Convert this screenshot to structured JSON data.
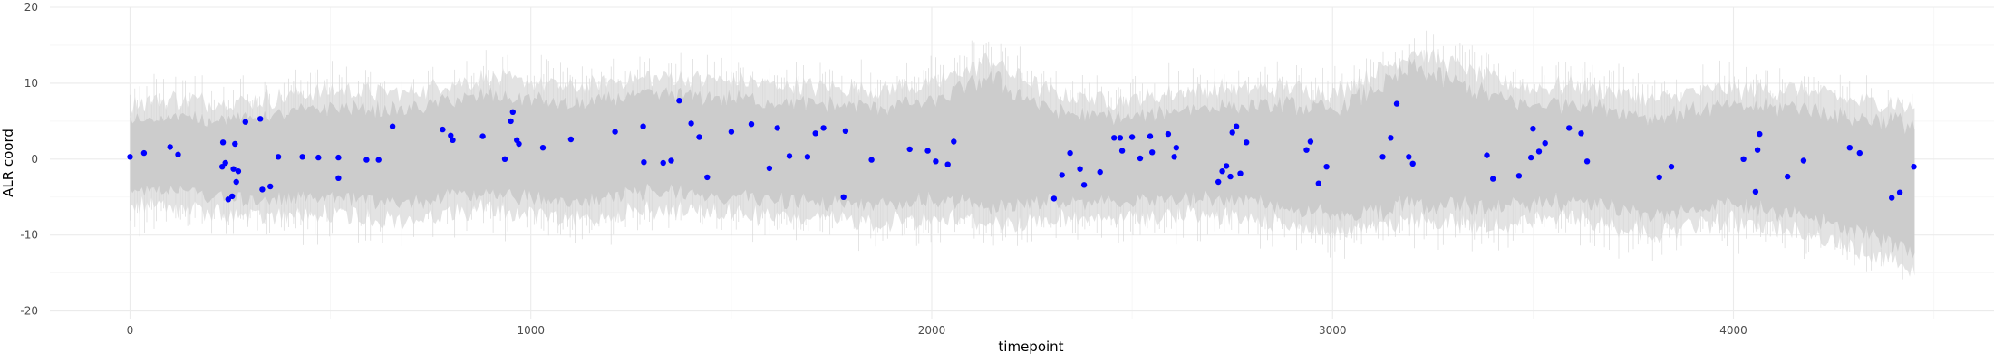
{
  "chart_data": {
    "type": "scatter",
    "title": "",
    "xlabel": "timepoint",
    "ylabel": "ALR coord",
    "xlim": [
      -200,
      4650
    ],
    "ylim": [
      -21,
      20
    ],
    "x_ticks": [
      0,
      1000,
      2000,
      3000,
      4000
    ],
    "y_ticks": [
      -20,
      -10,
      0,
      10,
      20
    ],
    "grid": true,
    "legend": "none",
    "colors": {
      "points": "#0000ff",
      "inner_band": "#cccccc",
      "outer_band": "#e3e3e3",
      "grid_major": "#ebebeb",
      "grid_minor": "#f5f5f5"
    },
    "band": {
      "x_range": [
        0,
        4453
      ],
      "center": [
        [
          0,
          0.5
        ],
        [
          100,
          0.8
        ],
        [
          200,
          0.2
        ],
        [
          300,
          0.0
        ],
        [
          400,
          0.5
        ],
        [
          500,
          0.8
        ],
        [
          600,
          0.5
        ],
        [
          700,
          0.3
        ],
        [
          800,
          1.5
        ],
        [
          900,
          2.0
        ],
        [
          1000,
          1.5
        ],
        [
          1100,
          0.5
        ],
        [
          1200,
          1.5
        ],
        [
          1300,
          2.0
        ],
        [
          1400,
          1.8
        ],
        [
          1500,
          1.5
        ],
        [
          1600,
          1.2
        ],
        [
          1700,
          0.8
        ],
        [
          1800,
          0.5
        ],
        [
          1900,
          0.5
        ],
        [
          2000,
          1.0
        ],
        [
          2100,
          2.0
        ],
        [
          2150,
          2.5
        ],
        [
          2200,
          1.5
        ],
        [
          2300,
          0.5
        ],
        [
          2400,
          0.0
        ],
        [
          2500,
          0.0
        ],
        [
          2600,
          0.5
        ],
        [
          2700,
          1.0
        ],
        [
          2800,
          0.5
        ],
        [
          2900,
          0.5
        ],
        [
          3000,
          -0.5
        ],
        [
          3100,
          1.0
        ],
        [
          3200,
          3.0
        ],
        [
          3300,
          2.0
        ],
        [
          3400,
          1.0
        ],
        [
          3500,
          0.5
        ],
        [
          3600,
          1.0
        ],
        [
          3700,
          0.0
        ],
        [
          3800,
          -1.0
        ],
        [
          3900,
          0.0
        ],
        [
          4000,
          0.5
        ],
        [
          4100,
          0.0
        ],
        [
          4200,
          -0.5
        ],
        [
          4300,
          -2.0
        ],
        [
          4400,
          -3.0
        ],
        [
          4453,
          -4.0
        ]
      ],
      "inner_half_width": [
        [
          0,
          4.5
        ],
        [
          500,
          6.0
        ],
        [
          1000,
          6.5
        ],
        [
          1500,
          6.5
        ],
        [
          2000,
          6.5
        ],
        [
          2150,
          8.5
        ],
        [
          2300,
          6.0
        ],
        [
          2500,
          5.5
        ],
        [
          3000,
          7.0
        ],
        [
          3200,
          9.0
        ],
        [
          3500,
          6.5
        ],
        [
          4000,
          6.5
        ],
        [
          4300,
          7.5
        ],
        [
          4453,
          8.5
        ]
      ],
      "outer_extra": 2.5,
      "spike_extra": 3.0
    },
    "points": [
      [
        0,
        0.3
      ],
      [
        35,
        0.8
      ],
      [
        100,
        1.6
      ],
      [
        120,
        0.6
      ],
      [
        230,
        -1.0
      ],
      [
        232,
        2.2
      ],
      [
        238,
        -0.5
      ],
      [
        245,
        -5.3
      ],
      [
        255,
        -4.9
      ],
      [
        258,
        -1.3
      ],
      [
        262,
        2.0
      ],
      [
        265,
        -3.0
      ],
      [
        270,
        -1.6
      ],
      [
        288,
        4.9
      ],
      [
        325,
        5.3
      ],
      [
        330,
        -4.0
      ],
      [
        350,
        -3.6
      ],
      [
        370,
        0.3
      ],
      [
        430,
        0.3
      ],
      [
        470,
        0.2
      ],
      [
        520,
        -2.5
      ],
      [
        520,
        0.2
      ],
      [
        590,
        -0.1
      ],
      [
        620,
        -0.1
      ],
      [
        655,
        4.3
      ],
      [
        780,
        3.9
      ],
      [
        800,
        3.1
      ],
      [
        805,
        2.5
      ],
      [
        880,
        3.0
      ],
      [
        935,
        0.0
      ],
      [
        950,
        5.0
      ],
      [
        955,
        6.2
      ],
      [
        965,
        2.5
      ],
      [
        970,
        2.0
      ],
      [
        1030,
        1.5
      ],
      [
        1100,
        2.6
      ],
      [
        1210,
        3.6
      ],
      [
        1280,
        4.3
      ],
      [
        1282,
        -0.4
      ],
      [
        1330,
        -0.5
      ],
      [
        1350,
        -0.2
      ],
      [
        1370,
        7.7
      ],
      [
        1400,
        4.7
      ],
      [
        1420,
        2.9
      ],
      [
        1440,
        -2.4
      ],
      [
        1500,
        3.6
      ],
      [
        1550,
        4.6
      ],
      [
        1595,
        -1.2
      ],
      [
        1615,
        4.1
      ],
      [
        1645,
        0.4
      ],
      [
        1690,
        0.3
      ],
      [
        1710,
        3.4
      ],
      [
        1730,
        4.1
      ],
      [
        1780,
        -5.0
      ],
      [
        1785,
        3.7
      ],
      [
        1850,
        -0.1
      ],
      [
        1945,
        1.3
      ],
      [
        1990,
        1.1
      ],
      [
        2010,
        -0.3
      ],
      [
        2040,
        -0.7
      ],
      [
        2055,
        2.3
      ],
      [
        2305,
        -5.2
      ],
      [
        2325,
        -2.1
      ],
      [
        2345,
        0.8
      ],
      [
        2370,
        -1.3
      ],
      [
        2380,
        -3.4
      ],
      [
        2420,
        -1.7
      ],
      [
        2455,
        2.8
      ],
      [
        2470,
        2.8
      ],
      [
        2475,
        1.1
      ],
      [
        2500,
        2.9
      ],
      [
        2520,
        0.1
      ],
      [
        2545,
        3.0
      ],
      [
        2550,
        0.9
      ],
      [
        2590,
        3.3
      ],
      [
        2605,
        0.3
      ],
      [
        2610,
        1.5
      ],
      [
        2715,
        -3.0
      ],
      [
        2725,
        -1.6
      ],
      [
        2735,
        -0.9
      ],
      [
        2745,
        -2.3
      ],
      [
        2750,
        3.5
      ],
      [
        2760,
        4.3
      ],
      [
        2770,
        -1.9
      ],
      [
        2785,
        2.2
      ],
      [
        2935,
        1.2
      ],
      [
        2945,
        2.3
      ],
      [
        2965,
        -3.2
      ],
      [
        2985,
        -1.0
      ],
      [
        3125,
        0.3
      ],
      [
        3145,
        2.8
      ],
      [
        3160,
        7.3
      ],
      [
        3190,
        0.3
      ],
      [
        3200,
        -0.6
      ],
      [
        3385,
        0.5
      ],
      [
        3400,
        -2.6
      ],
      [
        3465,
        -2.2
      ],
      [
        3495,
        0.2
      ],
      [
        3500,
        4.0
      ],
      [
        3515,
        1.0
      ],
      [
        3530,
        2.1
      ],
      [
        3590,
        4.1
      ],
      [
        3620,
        3.4
      ],
      [
        3635,
        -0.3
      ],
      [
        3815,
        -2.4
      ],
      [
        3845,
        -1.0
      ],
      [
        4025,
        0.0
      ],
      [
        4055,
        -4.3
      ],
      [
        4060,
        1.2
      ],
      [
        4065,
        3.3
      ],
      [
        4135,
        -2.3
      ],
      [
        4175,
        -0.2
      ],
      [
        4290,
        1.5
      ],
      [
        4315,
        0.8
      ],
      [
        4395,
        -5.1
      ],
      [
        4415,
        -4.4
      ],
      [
        4450,
        -1.0
      ]
    ]
  }
}
